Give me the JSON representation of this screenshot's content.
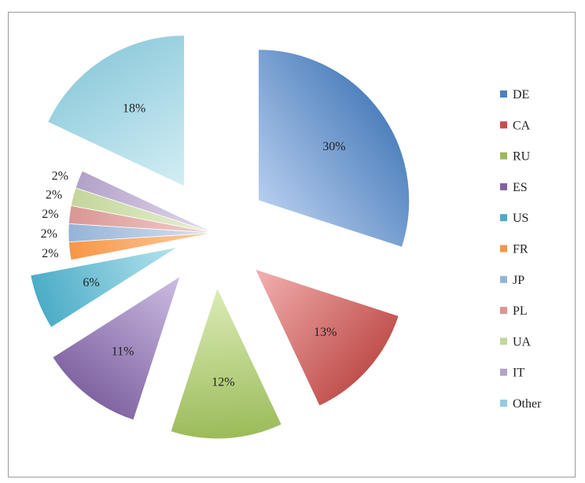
{
  "chart_data": {
    "type": "pie",
    "title": "",
    "exploded": true,
    "legend_position": "right",
    "slices": [
      {
        "label": "DE",
        "value": 30,
        "display": "30%",
        "color": "#4f81bd",
        "light": "#b6cdee"
      },
      {
        "label": "CA",
        "value": 13,
        "display": "13%",
        "color": "#c0504d",
        "light": "#f2b1b0"
      },
      {
        "label": "RU",
        "value": 12,
        "display": "12%",
        "color": "#9bbb59",
        "light": "#dcecb8"
      },
      {
        "label": "ES",
        "value": 11,
        "display": "11%",
        "color": "#8064a2",
        "light": "#cdbde3"
      },
      {
        "label": "US",
        "value": 6,
        "display": "6%",
        "color": "#4bacc6",
        "light": "#b5e3ef"
      },
      {
        "label": "FR",
        "value": 2,
        "display": "2%",
        "color": "#f79646",
        "light": "#fdcfa5"
      },
      {
        "label": "JP",
        "value": 2,
        "display": "2%",
        "color": "#95b3d7",
        "light": "#d6e3f2"
      },
      {
        "label": "PL",
        "value": 2,
        "display": "2%",
        "color": "#d99694",
        "light": "#f4d0cf"
      },
      {
        "label": "UA",
        "value": 2,
        "display": "2%",
        "color": "#c3d69b",
        "light": "#e8f1d4"
      },
      {
        "label": "IT",
        "value": 2,
        "display": "2%",
        "color": "#b2a2c7",
        "light": "#e2d9ee"
      },
      {
        "label": "Other",
        "value": 18,
        "display": "18%",
        "color": "#93cddd",
        "light": "#d3eef5"
      }
    ]
  }
}
